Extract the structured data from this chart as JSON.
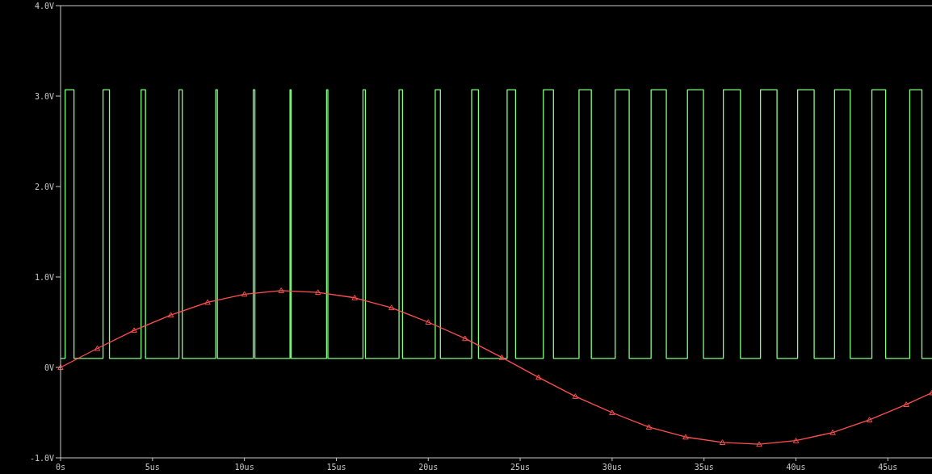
{
  "chart_data": {
    "type": "line",
    "xlim": [
      0,
      47.4
    ],
    "xticks": [
      {
        "value": 0,
        "label": "0s"
      },
      {
        "value": 5,
        "label": "5us"
      },
      {
        "value": 10,
        "label": "10us"
      },
      {
        "value": 15,
        "label": "15us"
      },
      {
        "value": 20,
        "label": "20us"
      },
      {
        "value": 25,
        "label": "25us"
      },
      {
        "value": 30,
        "label": "30us"
      },
      {
        "value": 35,
        "label": "35us"
      },
      {
        "value": 40,
        "label": "40us"
      },
      {
        "value": 45,
        "label": "45us"
      }
    ],
    "ylim": [
      -1,
      4
    ],
    "yticks": [
      {
        "value": -1,
        "label": "-1.0V"
      },
      {
        "value": 0,
        "label": "0V"
      },
      {
        "value": 1,
        "label": "1.0V"
      },
      {
        "value": 2,
        "label": "2.0V"
      },
      {
        "value": 3,
        "label": "3.0V"
      },
      {
        "value": 4,
        "label": "4.0V"
      }
    ],
    "grid": false,
    "series": [
      {
        "color": "#80ff80",
        "marker": "none",
        "line_style": "solid",
        "x": [
          0,
          0.25,
          0.25,
          0.73,
          0.73,
          2.31,
          2.31,
          2.66,
          2.66,
          4.38,
          4.38,
          4.62,
          4.62,
          6.44,
          6.44,
          6.62,
          6.62,
          8.44,
          8.44,
          8.53,
          8.53,
          10.48,
          10.48,
          10.57,
          10.57,
          12.48,
          12.48,
          12.54,
          12.54,
          14.47,
          14.47,
          14.54,
          14.54,
          16.45,
          16.45,
          16.58,
          16.58,
          18.41,
          18.41,
          18.6,
          18.6,
          20.38,
          20.38,
          20.66,
          20.66,
          22.36,
          22.36,
          22.73,
          22.73,
          24.29,
          24.29,
          24.75,
          24.75,
          26.26,
          26.26,
          26.81,
          26.81,
          28.2,
          28.2,
          28.87,
          28.87,
          30.17,
          30.17,
          30.93,
          30.93,
          32.12,
          32.12,
          32.95,
          32.95,
          34.1,
          34.1,
          34.97,
          34.97,
          36.05,
          36.05,
          36.98,
          36.98,
          38.07,
          38.07,
          38.97,
          38.97,
          40.09,
          40.09,
          40.99,
          40.99,
          42.1,
          42.1,
          42.95,
          42.95,
          44.13,
          44.13,
          44.88,
          44.88,
          46.19,
          46.19,
          46.85,
          46.85,
          47.4
        ],
        "values": [
          0.1,
          0.1,
          3.07,
          3.07,
          0.1,
          0.1,
          3.07,
          3.07,
          0.1,
          0.1,
          3.07,
          3.07,
          0.1,
          0.1,
          3.07,
          3.07,
          0.1,
          0.1,
          3.07,
          3.07,
          0.1,
          0.1,
          3.07,
          3.07,
          0.1,
          0.1,
          3.07,
          3.07,
          0.1,
          0.1,
          3.07,
          3.07,
          0.1,
          0.1,
          3.07,
          3.07,
          0.1,
          0.1,
          3.07,
          3.07,
          0.1,
          0.1,
          3.07,
          3.07,
          0.1,
          0.1,
          3.07,
          3.07,
          0.1,
          0.1,
          3.07,
          3.07,
          0.1,
          0.1,
          3.07,
          3.07,
          0.1,
          0.1,
          3.07,
          3.07,
          0.1,
          0.1,
          3.07,
          3.07,
          0.1,
          0.1,
          3.07,
          3.07,
          0.1,
          0.1,
          3.07,
          3.07,
          0.1,
          0.1,
          3.07,
          3.07,
          0.1,
          0.1,
          3.07,
          3.07,
          0.1,
          0.1,
          3.07,
          3.07,
          0.1,
          0.1,
          3.07,
          3.07,
          0.1,
          0.1,
          3.07,
          3.07,
          0.1,
          0.1,
          3.07,
          3.07,
          0.1,
          0.1
        ]
      },
      {
        "color": "#ff5050",
        "marker": "triangle",
        "line_style": "solid",
        "x": [
          0,
          2,
          4,
          6,
          8,
          10,
          12,
          14,
          16,
          18,
          20,
          22,
          24,
          26,
          28,
          30,
          32,
          34,
          36,
          38,
          40,
          42,
          44,
          46,
          47.4
        ],
        "values": [
          0,
          0.21,
          0.41,
          0.58,
          0.72,
          0.81,
          0.85,
          0.83,
          0.77,
          0.66,
          0.5,
          0.32,
          0.11,
          -0.11,
          -0.32,
          -0.5,
          -0.66,
          -0.77,
          -0.83,
          -0.85,
          -0.81,
          -0.72,
          -0.58,
          -0.41,
          -0.28
        ]
      }
    ]
  }
}
